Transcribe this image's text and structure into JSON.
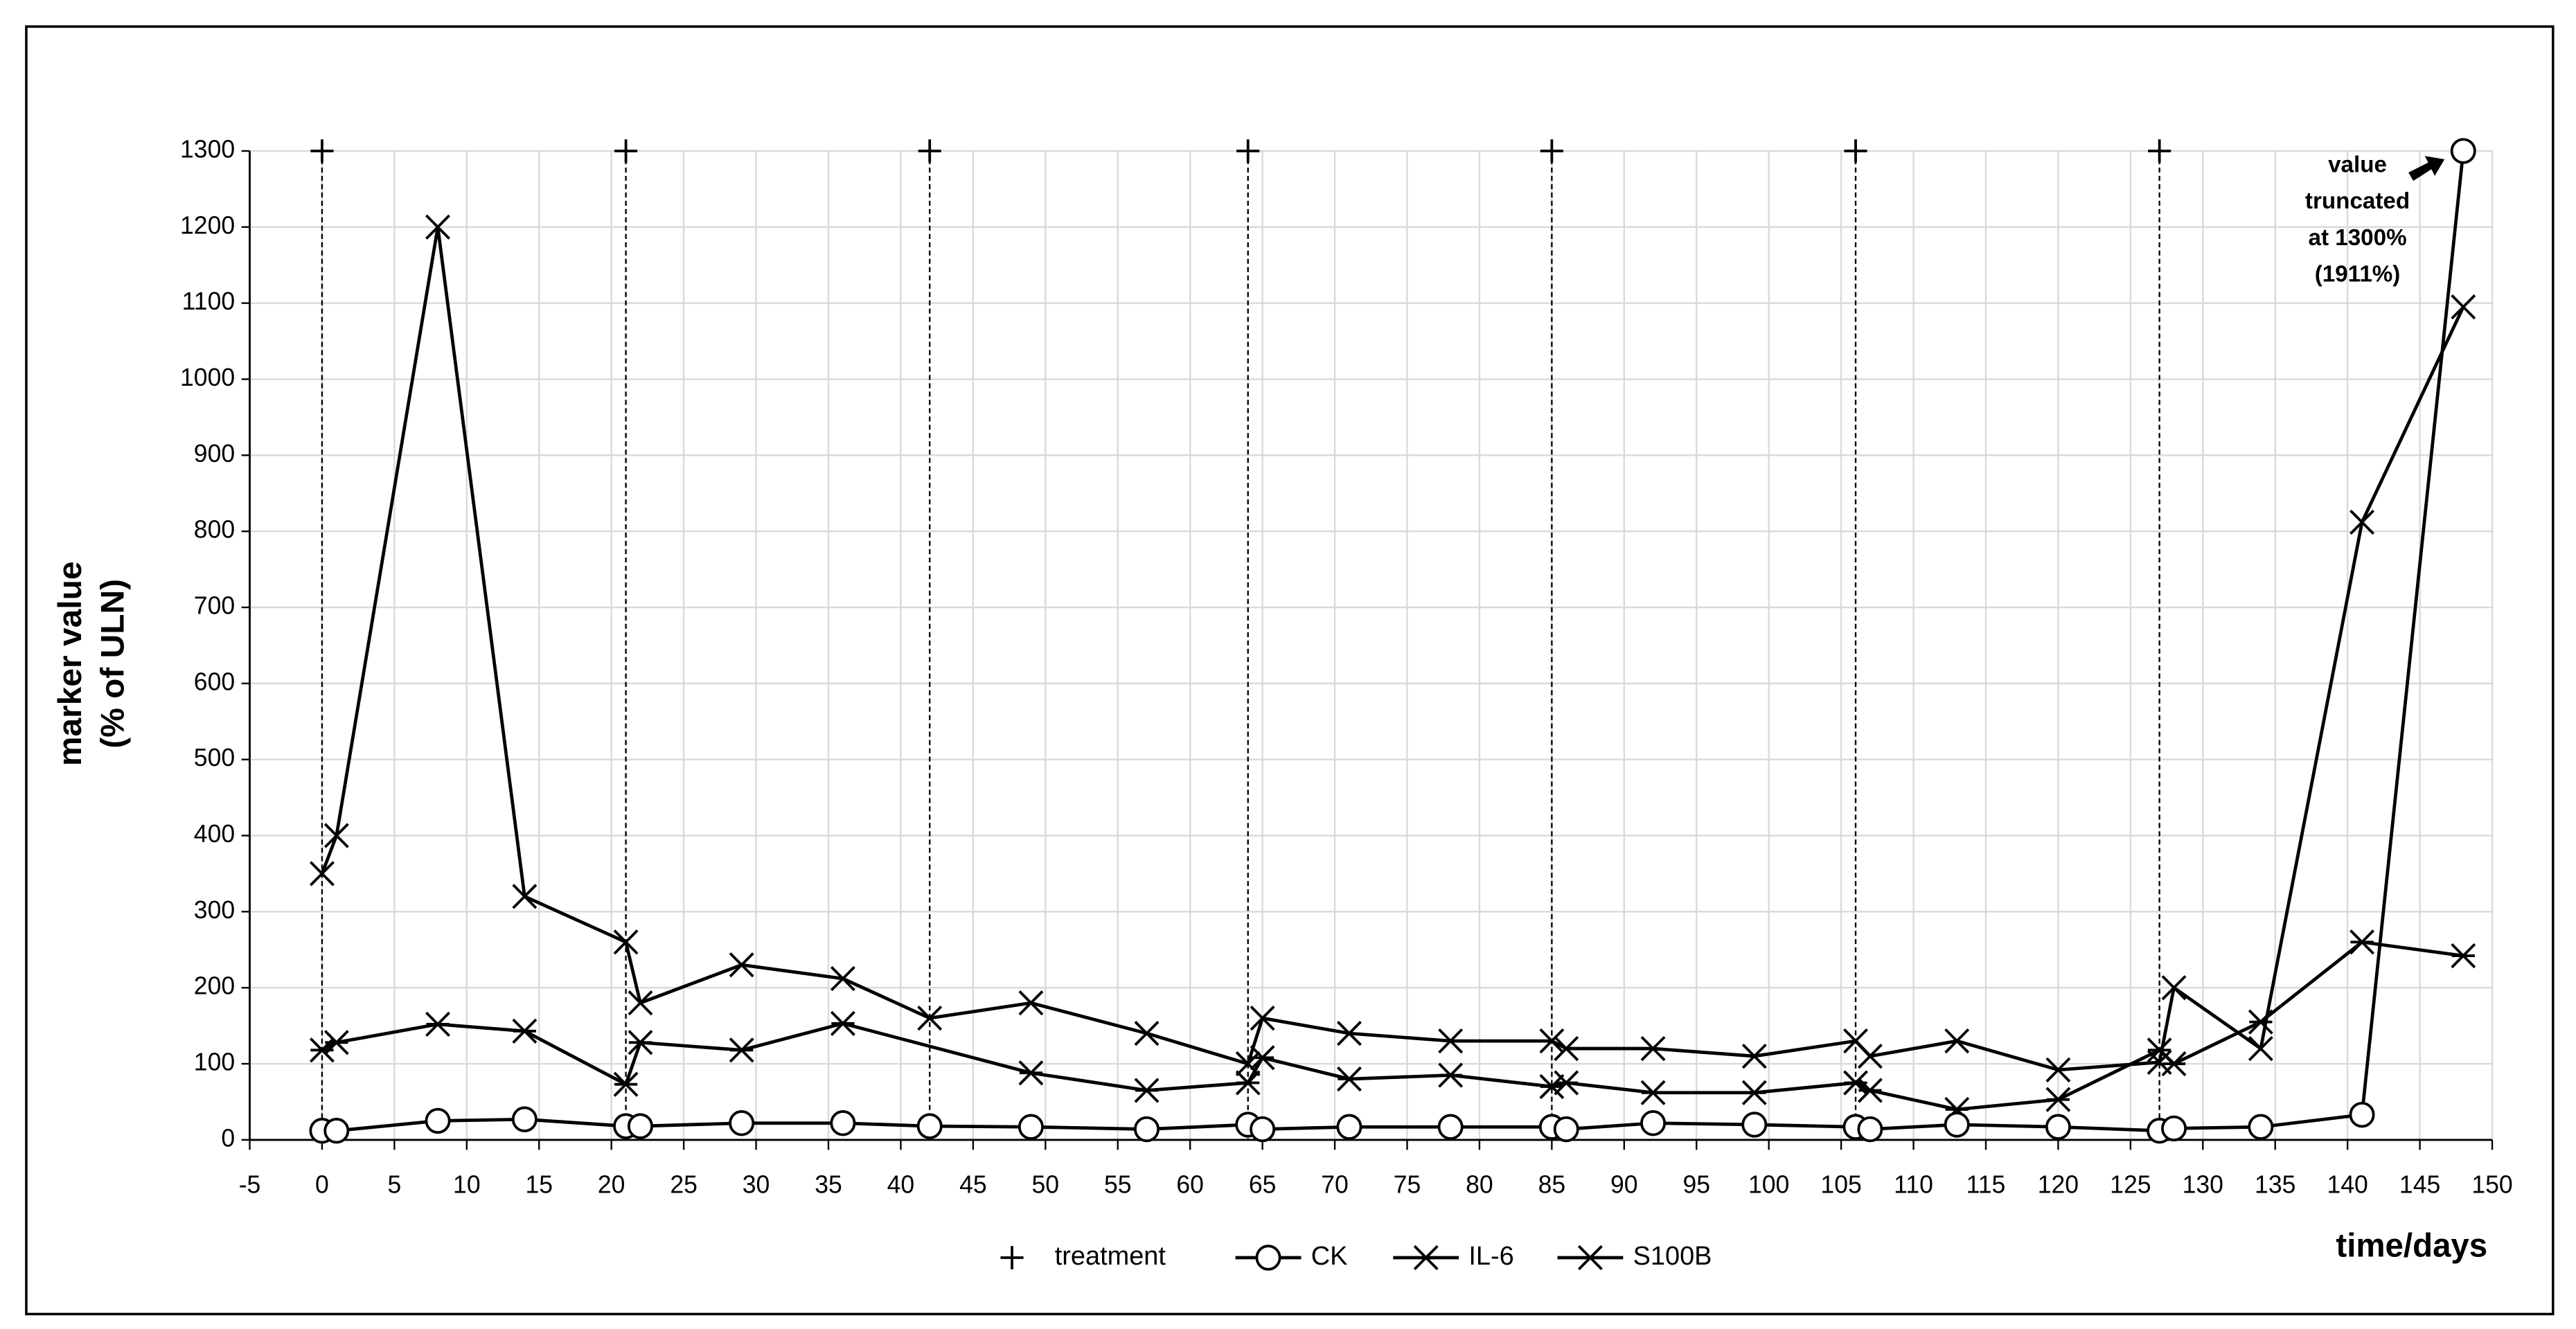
{
  "chart_data": {
    "type": "line",
    "y_label": [
      "marker value",
      "(% of ULN)"
    ],
    "x_label": "time/days",
    "annotation": [
      "value",
      "truncated",
      "at 1300%",
      "(1911%)"
    ],
    "xlim": [
      -5,
      150
    ],
    "xticks": [
      -5,
      0,
      5,
      10,
      15,
      20,
      25,
      30,
      35,
      40,
      45,
      50,
      55,
      60,
      65,
      70,
      75,
      80,
      85,
      90,
      95,
      100,
      105,
      110,
      115,
      120,
      125,
      130,
      135,
      140,
      145,
      150
    ],
    "ylim": [
      0,
      1300
    ],
    "yticks": [
      0,
      100,
      200,
      300,
      400,
      500,
      600,
      700,
      800,
      900,
      1000,
      1100,
      1200,
      1300
    ],
    "grid": true,
    "series": [
      {
        "name": "treatment",
        "color": "#000000",
        "marker": "plus",
        "show_line": false,
        "drop_lines": true,
        "x": [
          0,
          21,
          42,
          64,
          85,
          106,
          127
        ],
        "values": [
          1300,
          1300,
          1300,
          1300,
          1300,
          1300,
          1300
        ]
      },
      {
        "name": "CK",
        "color": "#000000",
        "marker": "circle",
        "show_line": true,
        "drop_lines": false,
        "x": [
          0,
          1,
          8,
          14,
          21,
          22,
          29,
          36,
          42,
          49,
          57,
          64,
          65,
          71,
          78,
          85,
          86,
          92,
          99,
          106,
          107,
          113,
          120,
          127,
          128,
          134,
          141,
          148
        ],
        "values": [
          12,
          12,
          25,
          27,
          18,
          18,
          22,
          22,
          18,
          17,
          14,
          20,
          14,
          17,
          17,
          17,
          14,
          22,
          20,
          17,
          14,
          20,
          17,
          12,
          15,
          17,
          33,
          1300
        ]
      },
      {
        "name": "IL-6",
        "color": "#000000",
        "marker": "asterisk",
        "show_line": true,
        "drop_lines": false,
        "x": [
          0,
          1,
          8,
          14,
          21,
          22,
          29,
          36,
          49,
          57,
          64,
          65,
          71,
          78,
          85,
          86,
          92,
          99,
          106,
          107,
          113,
          120,
          127,
          128,
          134,
          141,
          148
        ],
        "values": [
          118,
          128,
          152,
          143,
          73,
          128,
          118,
          153,
          88,
          65,
          75,
          108,
          80,
          85,
          70,
          75,
          62,
          62,
          75,
          65,
          40,
          53,
          118,
          100,
          155,
          260,
          242
        ]
      },
      {
        "name": "S100B",
        "color": "#000000",
        "marker": "cross",
        "show_line": true,
        "drop_lines": false,
        "x": [
          0,
          1,
          8,
          14,
          21,
          22,
          29,
          36,
          42,
          49,
          57,
          64,
          65,
          71,
          78,
          85,
          86,
          92,
          99,
          106,
          107,
          113,
          120,
          127,
          128,
          134,
          141,
          148
        ],
        "values": [
          350,
          400,
          1200,
          320,
          260,
          180,
          230,
          212,
          160,
          180,
          140,
          100,
          160,
          140,
          130,
          130,
          120,
          120,
          110,
          130,
          110,
          130,
          92,
          102,
          200,
          120,
          812,
          1095
        ]
      }
    ]
  }
}
